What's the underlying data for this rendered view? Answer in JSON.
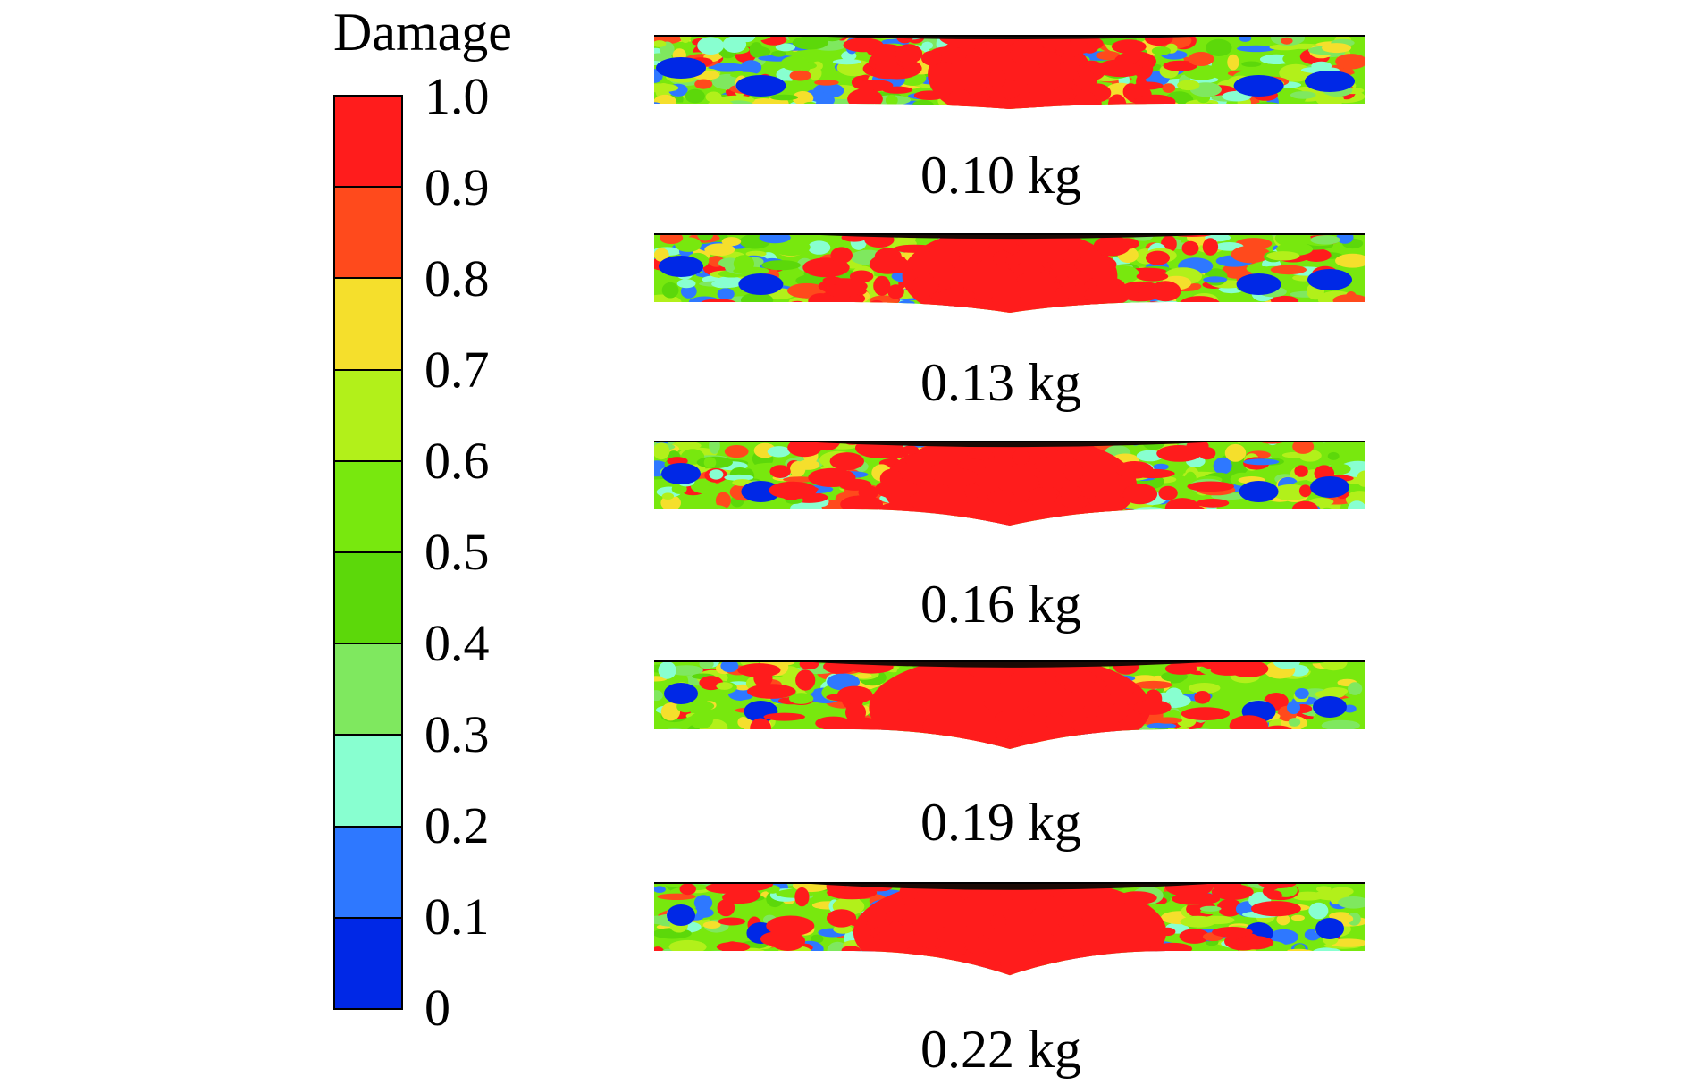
{
  "legend": {
    "title": "Damage",
    "ticks": [
      "1.0",
      "0.9",
      "0.8",
      "0.7",
      "0.6",
      "0.5",
      "0.4",
      "0.3",
      "0.2",
      "0.1",
      "0"
    ],
    "colors": [
      "#ff1c1c",
      "#ff4a1c",
      "#f5df2c",
      "#b2f01a",
      "#78e80e",
      "#5cd80a",
      "#7fe85f",
      "#88ffd0",
      "#2e78ff",
      "#0028e6"
    ]
  },
  "panels": [
    {
      "label": "0.10 kg",
      "dip": 0.15,
      "red_core": 0.42
    },
    {
      "label": "0.13 kg",
      "dip": 0.3,
      "red_core": 0.55
    },
    {
      "label": "0.16 kg",
      "dip": 0.45,
      "red_core": 0.65
    },
    {
      "label": "0.19 kg",
      "dip": 0.55,
      "red_core": 0.72
    },
    {
      "label": "0.22 kg",
      "dip": 0.68,
      "red_core": 0.8
    }
  ]
}
